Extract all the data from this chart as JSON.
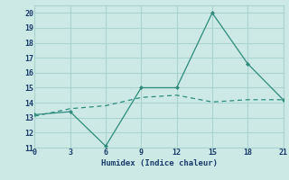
{
  "x": [
    0,
    3,
    6,
    9,
    12,
    15,
    18,
    21
  ],
  "y_line1": [
    13.2,
    13.4,
    11.1,
    15.0,
    15.0,
    20.0,
    16.6,
    14.2
  ],
  "y_line2": [
    13.1,
    13.6,
    13.8,
    14.35,
    14.5,
    14.05,
    14.2,
    14.2
  ],
  "line_color": "#2e8b7a",
  "bg_color": "#cce9e6",
  "grid_color": "#aad4d0",
  "xlabel": "Humidex (Indice chaleur)",
  "xlim": [
    0,
    21
  ],
  "ylim": [
    11,
    20
  ],
  "xticks": [
    0,
    3,
    6,
    9,
    12,
    15,
    18,
    21
  ],
  "yticks": [
    11,
    12,
    13,
    14,
    15,
    16,
    17,
    18,
    19,
    20
  ]
}
